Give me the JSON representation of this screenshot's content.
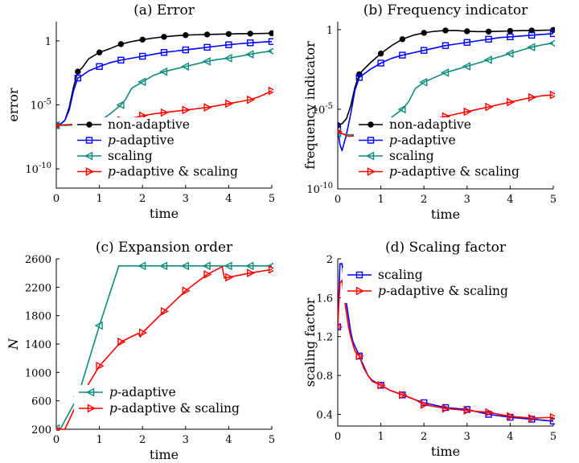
{
  "chart_data": [
    {
      "type": "line",
      "title": "(a) Error",
      "xlabel": "time",
      "ylabel": "error",
      "yscale": "log",
      "xlim": [
        0,
        5
      ],
      "ylim": [
        -11.5,
        1.5
      ],
      "xticks": [
        0,
        1,
        2,
        3,
        4,
        5
      ],
      "yticks": [
        {
          "exp": 0,
          "label": "1"
        },
        {
          "exp": -5,
          "label": "10",
          "sup": "-5"
        },
        {
          "exp": -10,
          "label": "10",
          "sup": "-10"
        }
      ],
      "legend": "bottom-right",
      "series": [
        {
          "name": "non-adaptive",
          "color": "#000000",
          "marker": "dot",
          "x": [
            0,
            0.1,
            0.2,
            0.3,
            0.4,
            0.5,
            0.6,
            0.75,
            1.0,
            1.25,
            1.5,
            1.75,
            2.0,
            2.25,
            2.5,
            2.75,
            3.0,
            3.25,
            3.5,
            3.75,
            4.0,
            4.25,
            4.5,
            4.75,
            5.0
          ],
          "y": [
            -6.6,
            -6.5,
            -6.2,
            -5.2,
            -3.6,
            -2.4,
            -2.1,
            -1.4,
            -0.9,
            -0.6,
            -0.25,
            -0.05,
            0.1,
            0.22,
            0.32,
            0.4,
            0.45,
            0.48,
            0.5,
            0.52,
            0.54,
            0.56,
            0.57,
            0.58,
            0.6
          ]
        },
        {
          "name": "p-adaptive",
          "color": "#0000ff",
          "marker": "square",
          "x": [
            0,
            0.1,
            0.2,
            0.3,
            0.4,
            0.5,
            0.6,
            0.75,
            1.0,
            1.25,
            1.5,
            1.75,
            2.0,
            2.25,
            2.5,
            2.75,
            3.0,
            3.25,
            3.5,
            3.75,
            4.0,
            4.25,
            4.5,
            4.75,
            5.0
          ],
          "y": [
            -6.6,
            -6.5,
            -6.2,
            -5.4,
            -3.9,
            -2.9,
            -2.7,
            -2.35,
            -2.0,
            -1.7,
            -1.5,
            -1.35,
            -1.2,
            -1.05,
            -0.9,
            -0.8,
            -0.7,
            -0.6,
            -0.5,
            -0.4,
            -0.3,
            -0.22,
            -0.15,
            -0.1,
            -0.05
          ]
        },
        {
          "name": "scaling",
          "color": "#0e8c7c",
          "marker": "triangle-left",
          "x": [
            0,
            0.25,
            0.5,
            0.75,
            1.0,
            1.25,
            1.5,
            1.6,
            1.75,
            2.0,
            2.25,
            2.5,
            2.75,
            3.0,
            3.25,
            3.5,
            3.75,
            4.0,
            4.25,
            4.5,
            4.75,
            5.0
          ],
          "y": [
            -6.6,
            -6.6,
            -6.55,
            -6.5,
            -6.3,
            -5.7,
            -5.0,
            -4.6,
            -3.7,
            -3.2,
            -2.7,
            -2.4,
            -2.2,
            -2.0,
            -1.8,
            -1.6,
            -1.45,
            -1.35,
            -1.2,
            -1.05,
            -0.9,
            -0.8
          ]
        },
        {
          "name": "p-adaptive & scaling",
          "color": "#ff0000",
          "marker": "triangle-right",
          "x": [
            0,
            0.25,
            0.5,
            0.75,
            1.0,
            1.25,
            1.5,
            1.75,
            2.0,
            2.25,
            2.5,
            2.75,
            3.0,
            3.25,
            3.5,
            3.75,
            4.0,
            4.25,
            4.5,
            4.75,
            5.0
          ],
          "y": [
            -6.6,
            -6.55,
            -6.5,
            -6.45,
            -6.4,
            -6.3,
            -6.2,
            -6.05,
            -5.85,
            -5.7,
            -5.6,
            -5.5,
            -5.4,
            -5.3,
            -5.2,
            -5.05,
            -4.9,
            -4.75,
            -4.6,
            -4.3,
            -3.9
          ]
        }
      ]
    },
    {
      "type": "line",
      "title": "(b) Frequency indicator",
      "xlabel": "time",
      "ylabel": "frequency indicator",
      "yscale": "log",
      "xlim": [
        0,
        5
      ],
      "ylim": [
        -10,
        0.5
      ],
      "xticks": [
        0,
        1,
        2,
        3,
        4,
        5
      ],
      "yticks": [
        {
          "exp": 0,
          "label": "1"
        },
        {
          "exp": -5,
          "label": "10",
          "sup": "-5"
        },
        {
          "exp": -10,
          "label": "10",
          "sup": "-10"
        }
      ],
      "legend": "bottom-right",
      "series": [
        {
          "name": "non-adaptive",
          "color": "#000000",
          "marker": "dot",
          "x": [
            0,
            0.1,
            0.2,
            0.3,
            0.4,
            0.5,
            0.6,
            0.75,
            1.0,
            1.25,
            1.5,
            1.75,
            2.0,
            2.25,
            2.5,
            2.75,
            3.0,
            3.25,
            3.5,
            3.75,
            4.0,
            4.25,
            4.5,
            4.75,
            5.0
          ],
          "y": [
            -6.0,
            -5.9,
            -5.6,
            -4.8,
            -3.6,
            -2.8,
            -2.5,
            -2.1,
            -1.5,
            -1.0,
            -0.6,
            -0.35,
            -0.2,
            -0.1,
            -0.05,
            -0.05,
            -0.1,
            -0.12,
            -0.12,
            -0.1,
            -0.08,
            -0.06,
            -0.05,
            -0.04,
            -0.02
          ]
        },
        {
          "name": "p-adaptive",
          "color": "#0000ff",
          "marker": "square",
          "x": [
            0,
            0.05,
            0.1,
            0.2,
            0.3,
            0.4,
            0.5,
            0.6,
            0.75,
            1.0,
            1.25,
            1.5,
            1.75,
            2.0,
            2.25,
            2.5,
            2.75,
            3.0,
            3.25,
            3.5,
            3.75,
            4.0,
            4.25,
            4.5,
            4.75,
            5.0
          ],
          "y": [
            -6.2,
            -7.2,
            -7.6,
            -6.6,
            -5.3,
            -3.8,
            -3.0,
            -2.8,
            -2.5,
            -2.1,
            -1.8,
            -1.6,
            -1.45,
            -1.3,
            -1.15,
            -1.0,
            -0.9,
            -0.8,
            -0.7,
            -0.6,
            -0.5,
            -0.45,
            -0.4,
            -0.35,
            -0.3,
            -0.25
          ]
        },
        {
          "name": "scaling",
          "color": "#0e8c7c",
          "marker": "triangle-left",
          "x": [
            0,
            0.25,
            0.5,
            0.75,
            1.0,
            1.25,
            1.5,
            1.65,
            1.8,
            2.0,
            2.25,
            2.5,
            2.75,
            3.0,
            3.25,
            3.5,
            3.75,
            4.0,
            4.25,
            4.5,
            4.75,
            5.0
          ],
          "y": [
            -6.5,
            -6.6,
            -6.6,
            -6.4,
            -6.0,
            -5.5,
            -5.0,
            -4.5,
            -3.7,
            -3.3,
            -3.0,
            -2.7,
            -2.5,
            -2.3,
            -2.1,
            -1.9,
            -1.7,
            -1.5,
            -1.3,
            -1.1,
            -0.95,
            -0.85
          ]
        },
        {
          "name": "p-adaptive & scaling",
          "color": "#ff0000",
          "marker": "triangle-right",
          "x": [
            0,
            0.25,
            0.5,
            0.75,
            1.0,
            1.25,
            1.5,
            1.75,
            2.0,
            2.25,
            2.5,
            2.75,
            3.0,
            3.25,
            3.5,
            3.75,
            4.0,
            4.25,
            4.5,
            4.75,
            5.0
          ],
          "y": [
            -6.4,
            -6.7,
            -6.65,
            -6.55,
            -6.4,
            -6.25,
            -6.1,
            -5.95,
            -5.8,
            -5.6,
            -5.45,
            -5.3,
            -5.15,
            -5.0,
            -4.85,
            -4.7,
            -4.55,
            -4.4,
            -4.25,
            -4.15,
            -4.1
          ]
        }
      ]
    },
    {
      "type": "line",
      "title": "(c) Expansion order",
      "xlabel": "time",
      "ylabel": "N",
      "xlim": [
        0,
        5
      ],
      "ylim": [
        200,
        2600
      ],
      "xticks": [
        0,
        1,
        2,
        3,
        4,
        5
      ],
      "yticks": [
        200,
        600,
        1000,
        1400,
        1800,
        2200,
        2600
      ],
      "legend": "bottom-right",
      "series": [
        {
          "name": "p-adaptive",
          "color": "#0e8c7c",
          "marker": "triangle-left",
          "x": [
            0,
            0.1,
            0.5,
            1.0,
            1.45,
            2.0,
            2.5,
            3.0,
            3.5,
            4.0,
            4.5,
            5.0
          ],
          "y": [
            210,
            210,
            660,
            1660,
            2500,
            2500,
            2500,
            2500,
            2500,
            2500,
            2500,
            2500
          ]
        },
        {
          "name": "p-adaptive & scaling",
          "color": "#ff0000",
          "marker": "triangle-right",
          "x": [
            0,
            0.1,
            0.2,
            0.5,
            1.0,
            1.5,
            1.9,
            1.95,
            2.0,
            2.5,
            3.0,
            3.5,
            3.85,
            3.9,
            4.0,
            4.5,
            5.0
          ],
          "y": [
            200,
            200,
            200,
            590,
            1090,
            1430,
            1550,
            1500,
            1560,
            1860,
            2150,
            2380,
            2490,
            2330,
            2340,
            2400,
            2450
          ]
        }
      ]
    },
    {
      "type": "line",
      "title": "(d) Scaling factor",
      "xlabel": "time",
      "ylabel": "scaling factor",
      "xlim": [
        0,
        5
      ],
      "ylim": [
        0.28,
        2.0
      ],
      "xticks": [
        0,
        1,
        2,
        3,
        4,
        5
      ],
      "yticks": [
        0.4,
        0.8,
        1.2,
        1.6,
        2
      ],
      "legend": "top-right",
      "series": [
        {
          "name": "scaling",
          "color": "#0000ff",
          "marker": "square",
          "x": [
            0,
            0.05,
            0.1,
            0.15,
            0.2,
            0.25,
            0.3,
            0.35,
            0.4,
            0.45,
            0.5,
            0.6,
            0.7,
            0.8,
            1.0,
            1.2,
            1.5,
            1.8,
            2.0,
            2.5,
            3.0,
            3.5,
            4.0,
            4.5,
            5.0
          ],
          "y": [
            1.3,
            1.95,
            1.95,
            1.75,
            1.55,
            1.4,
            1.25,
            1.15,
            1.1,
            1.05,
            1.0,
            0.9,
            0.8,
            0.75,
            0.7,
            0.65,
            0.6,
            0.55,
            0.52,
            0.47,
            0.45,
            0.4,
            0.37,
            0.35,
            0.33
          ]
        },
        {
          "name": "p-adaptive & scaling",
          "color": "#ff0000",
          "marker": "triangle-right",
          "x": [
            0,
            0.05,
            0.1,
            0.15,
            0.2,
            0.25,
            0.3,
            0.35,
            0.4,
            0.45,
            0.5,
            0.6,
            0.7,
            0.8,
            1.0,
            1.2,
            1.5,
            1.8,
            2.0,
            2.5,
            3.0,
            3.5,
            4.0,
            4.5,
            5.0
          ],
          "y": [
            1.3,
            1.75,
            1.78,
            1.6,
            1.45,
            1.3,
            1.2,
            1.12,
            1.05,
            1.02,
            1.0,
            0.88,
            0.8,
            0.74,
            0.7,
            0.65,
            0.6,
            0.55,
            0.5,
            0.46,
            0.44,
            0.42,
            0.38,
            0.36,
            0.37
          ]
        }
      ]
    }
  ]
}
